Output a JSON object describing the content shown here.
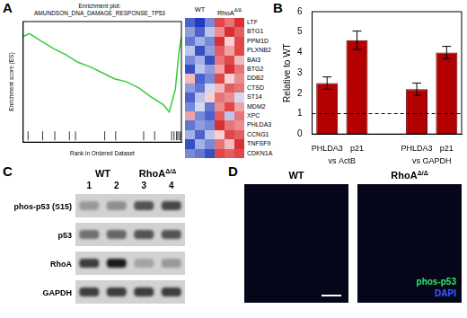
{
  "panel_labels": [
    "A",
    "B",
    "C",
    "D"
  ],
  "chart_data": [
    {
      "type": "line",
      "title": "Enrichment plot: AMUNDSON_DNA_DAMAGE_RESPONSE_TP53",
      "xlabel": "Rank in Ordered Dataset",
      "ylabel": "Enrichment score (ES)",
      "x": [
        0,
        500,
        1500,
        2500,
        3500,
        4500,
        5500,
        6500,
        7500,
        8500,
        9500,
        10500,
        11500,
        12000,
        12500,
        12800,
        13000
      ],
      "values": [
        0,
        0.02,
        -0.03,
        -0.08,
        -0.12,
        -0.17,
        -0.2,
        -0.24,
        -0.28,
        -0.3,
        -0.34,
        -0.4,
        -0.45,
        -0.5,
        -0.35,
        -0.1,
        0
      ],
      "hits": [
        400,
        1600,
        2600,
        3800,
        4300,
        6700,
        7600,
        9900,
        10800,
        12200,
        12400,
        12600,
        12700,
        12850,
        12950
      ],
      "color": "#33cc33",
      "xlim": [
        0,
        13000
      ],
      "ylim": [
        -0.7,
        0.1
      ],
      "tick_labels": false,
      "grid": false
    },
    {
      "type": "bar",
      "ylabel": "Relative to WT",
      "categories": [
        "PHLDA3",
        "p21",
        null,
        "PHLDA3",
        "p21"
      ],
      "groups": [
        "vs ActB",
        "vs GAPDH"
      ],
      "values": [
        2.5,
        4.6,
        null,
        2.2,
        4.0
      ],
      "errors": [
        0.3,
        0.45,
        null,
        0.3,
        0.3
      ],
      "color": "#b30000",
      "ylim": [
        0,
        6
      ],
      "yticks": [
        0,
        1,
        2,
        3,
        4,
        5,
        6
      ],
      "reference_line": 1,
      "grid": false
    }
  ],
  "heatmap": {
    "column_groups": [
      {
        "label": "WT"
      },
      {
        "label": "RhoA",
        "sup": "Δ/Δ"
      }
    ],
    "genes": [
      "LTF",
      "BTG1",
      "PPM1D",
      "PLXNB2",
      "BAI3",
      "BTG2",
      "DDB2",
      "CTSD",
      "ST14",
      "MDM2",
      "XPC",
      "PHLDA3",
      "CCNG1",
      "TNFSF9",
      "CDKN1A"
    ],
    "range": [
      -1,
      1
    ],
    "values": [
      [
        -0.8,
        -1,
        -0.6,
        0.8,
        0.6,
        0.9
      ],
      [
        -0.5,
        -0.8,
        -0.3,
        0.5,
        0.9,
        0.7
      ],
      [
        -0.7,
        -0.4,
        -0.6,
        0.9,
        0.2,
        0.8
      ],
      [
        -0.3,
        -0.9,
        -0.5,
        0.7,
        0.4,
        0.8
      ],
      [
        -0.6,
        -0.4,
        -0.9,
        0.6,
        0.8,
        0.3
      ],
      [
        -0.9,
        -0.3,
        -0.5,
        0.4,
        0.9,
        0.6
      ],
      [
        0.3,
        -0.8,
        -0.6,
        0.8,
        0.2,
        0.5
      ],
      [
        -0.5,
        -0.7,
        -0.2,
        0.3,
        0.7,
        0.6
      ],
      [
        -0.8,
        -0.3,
        0.2,
        0.6,
        0.5,
        -0.2
      ],
      [
        -0.6,
        -0.2,
        -0.7,
        0.5,
        0.8,
        0.4
      ],
      [
        0.4,
        -0.6,
        -0.8,
        0.7,
        -0.3,
        0.6
      ],
      [
        -0.7,
        -0.5,
        -0.6,
        0.9,
        0.6,
        0.5
      ],
      [
        -0.4,
        -0.8,
        -0.3,
        0.2,
        0.8,
        0.7
      ],
      [
        -0.9,
        -0.4,
        -0.6,
        0.6,
        0.3,
        0.9
      ],
      [
        -0.6,
        -0.7,
        -0.9,
        0.8,
        0.7,
        0.8
      ]
    ]
  },
  "western_blot": {
    "column_groups": [
      {
        "label": "WT",
        "lanes": [
          "1",
          "2"
        ]
      },
      {
        "label": "RhoA",
        "sup": "Δ/Δ",
        "lanes": [
          "3",
          "4"
        ]
      }
    ],
    "rows": [
      {
        "label": "phos-p53 (S15)",
        "intensity": [
          0.35,
          0.4,
          0.7,
          0.75
        ]
      },
      {
        "label": "p53",
        "intensity": [
          0.55,
          0.6,
          0.7,
          0.7
        ]
      },
      {
        "label": "RhoA",
        "intensity": [
          0.8,
          0.95,
          0.3,
          0.35
        ]
      },
      {
        "label": "GAPDH",
        "intensity": [
          0.8,
          0.8,
          0.8,
          0.8
        ]
      }
    ]
  },
  "microscopy": {
    "images": [
      {
        "label": "WT",
        "stains": [
          "DAPI"
        ]
      },
      {
        "label": "RhoA",
        "sup": "Δ/Δ",
        "stains": [
          "DAPI",
          "phos-p53"
        ]
      }
    ],
    "stain_legend": [
      {
        "name": "phos-p53",
        "color": "#33dd66"
      },
      {
        "name": "DAPI",
        "color": "#3b5bff"
      }
    ]
  }
}
